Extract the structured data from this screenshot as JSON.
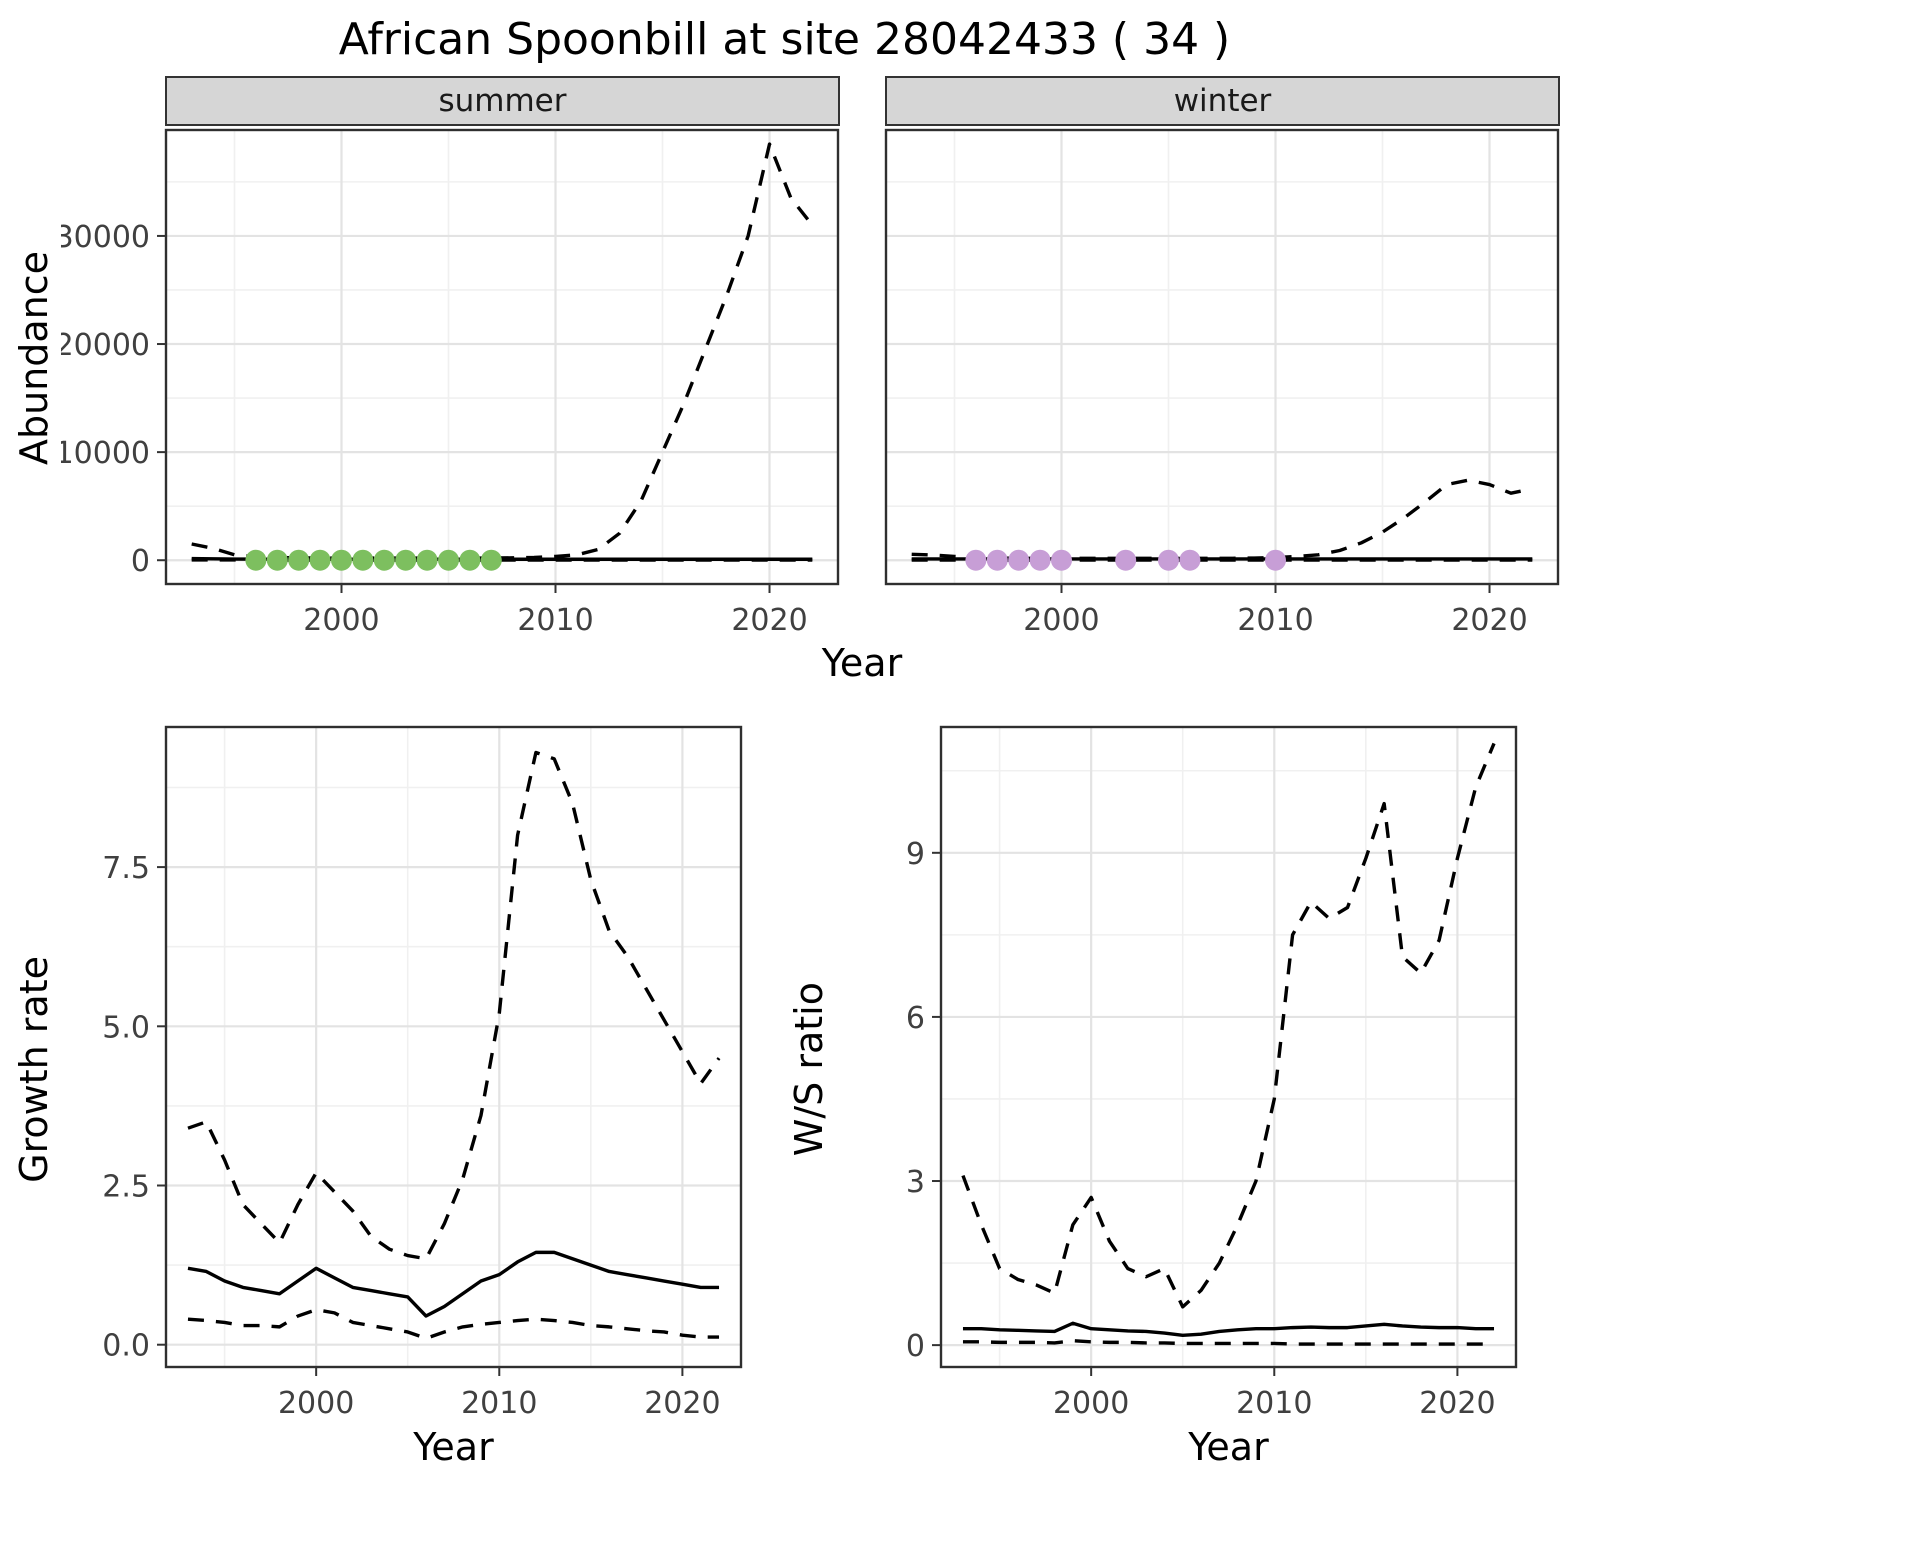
{
  "title": "African Spoonbill at site 28042433 ( 34 )",
  "abundance": {
    "ylabel": "Abundance",
    "xlabel": "Year",
    "facets": [
      {
        "label": "summer"
      },
      {
        "label": "winter"
      }
    ]
  },
  "growth": {
    "ylabel": "Growth rate",
    "xlabel": "Year"
  },
  "ratio": {
    "ylabel": "W/S ratio",
    "xlabel": "Year"
  },
  "colors": {
    "line": "#000000",
    "summer_points": "#7dbf5f",
    "winter_points": "#c79ed6",
    "grid_major": "#e3e3e3",
    "grid_minor": "#f0f0f0",
    "panel_border": "#2f2f2f",
    "strip_bg": "#d6d6d6"
  },
  "chart_data": [
    {
      "type": "line",
      "name": "abundance_summer",
      "facet": "summer",
      "xlabel": "Year",
      "ylabel": "Abundance",
      "xlim": [
        1991.8,
        2023.2
      ],
      "ylim": [
        -2200,
        39800
      ],
      "xticks": {
        "values": [
          2000,
          2010,
          2020
        ],
        "labels": [
          "2000",
          "2010",
          "2020"
        ]
      },
      "yticks": {
        "values": [
          0,
          10000,
          20000,
          30000
        ],
        "labels": [
          "0",
          "10000",
          "20000",
          "30000"
        ]
      },
      "x": [
        1993,
        1994,
        1995,
        1996,
        1997,
        1998,
        1999,
        2000,
        2001,
        2002,
        2003,
        2004,
        2005,
        2006,
        2007,
        2008,
        2009,
        2010,
        2011,
        2012,
        2013,
        2014,
        2015,
        2016,
        2017,
        2018,
        2019,
        2020,
        2021,
        2022
      ],
      "series": [
        {
          "name": "upper_ci",
          "style": "dashed",
          "y": [
            1500,
            1100,
            500,
            300,
            250,
            220,
            200,
            200,
            200,
            200,
            200,
            200,
            200,
            200,
            200,
            220,
            260,
            350,
            500,
            1000,
            2500,
            5500,
            10000,
            14500,
            19500,
            24500,
            30000,
            38500,
            33500,
            31000
          ]
        },
        {
          "name": "median",
          "style": "solid",
          "y": [
            150,
            130,
            110,
            100,
            95,
            90,
            90,
            90,
            90,
            90,
            90,
            90,
            90,
            90,
            90,
            90,
            90,
            90,
            90,
            90,
            90,
            90,
            90,
            90,
            90,
            90,
            90,
            90,
            90,
            90
          ]
        },
        {
          "name": "lower_ci",
          "style": "dashed",
          "y": [
            30,
            25,
            22,
            20,
            18,
            15,
            15,
            15,
            15,
            15,
            15,
            15,
            15,
            15,
            15,
            15,
            15,
            15,
            15,
            15,
            15,
            15,
            15,
            15,
            15,
            15,
            15,
            15,
            15,
            15
          ]
        }
      ],
      "points": {
        "name": "observed_counts",
        "color_key": "summer_points",
        "x": [
          1996,
          1997,
          1998,
          1999,
          2000,
          2001,
          2002,
          2003,
          2004,
          2005,
          2006,
          2007
        ],
        "y": [
          0,
          0,
          0,
          0,
          0,
          0,
          0,
          0,
          0,
          0,
          0,
          0
        ]
      }
    },
    {
      "type": "line",
      "name": "abundance_winter",
      "facet": "winter",
      "xlabel": "Year",
      "ylabel": "Abundance",
      "xlim": [
        1991.8,
        2023.2
      ],
      "ylim": [
        -2200,
        39800
      ],
      "xticks": {
        "values": [
          2000,
          2010,
          2020
        ],
        "labels": [
          "2000",
          "2010",
          "2020"
        ]
      },
      "yticks": {
        "values": [
          0,
          10000,
          20000,
          30000
        ],
        "labels": [
          "0",
          "10000",
          "20000",
          "30000"
        ]
      },
      "x": [
        1993,
        1994,
        1995,
        1996,
        1997,
        1998,
        1999,
        2000,
        2001,
        2002,
        2003,
        2004,
        2005,
        2006,
        2007,
        2008,
        2009,
        2010,
        2011,
        2012,
        2013,
        2014,
        2015,
        2016,
        2017,
        2018,
        2019,
        2020,
        2021,
        2022
      ],
      "series": [
        {
          "name": "upper_ci",
          "style": "dashed",
          "y": [
            550,
            480,
            350,
            250,
            200,
            180,
            170,
            170,
            170,
            170,
            170,
            170,
            170,
            170,
            170,
            180,
            200,
            250,
            350,
            500,
            900,
            1600,
            2600,
            3900,
            5400,
            7000,
            7400,
            7000,
            6200,
            6600
          ]
        },
        {
          "name": "median",
          "style": "solid",
          "y": [
            120,
            120,
            120,
            120,
            120,
            120,
            120,
            120,
            120,
            120,
            120,
            120,
            120,
            120,
            120,
            120,
            120,
            120,
            120,
            120,
            120,
            120,
            120,
            120,
            120,
            120,
            120,
            120,
            120,
            120
          ]
        },
        {
          "name": "lower_ci",
          "style": "dashed",
          "y": [
            20,
            20,
            20,
            20,
            20,
            20,
            20,
            20,
            20,
            20,
            20,
            20,
            20,
            20,
            20,
            20,
            20,
            20,
            20,
            20,
            20,
            20,
            20,
            20,
            20,
            20,
            20,
            20,
            20,
            20
          ]
        }
      ],
      "points": {
        "name": "observed_counts",
        "color_key": "winter_points",
        "x": [
          1996,
          1997,
          1998,
          1999,
          2000,
          2003,
          2005,
          2006,
          2010
        ],
        "y": [
          0,
          0,
          0,
          0,
          0,
          0,
          0,
          0,
          0
        ]
      }
    },
    {
      "type": "line",
      "name": "growth_rate",
      "xlabel": "Year",
      "ylabel": "Growth rate",
      "xlim": [
        1991.8,
        2023.2
      ],
      "ylim": [
        -0.35,
        9.7
      ],
      "xticks": {
        "values": [
          2000,
          2010,
          2020
        ],
        "labels": [
          "2000",
          "2010",
          "2020"
        ]
      },
      "yticks": {
        "values": [
          0,
          2.5,
          5,
          7.5
        ],
        "labels": [
          "0.0",
          "2.5",
          "5.0",
          "7.5"
        ]
      },
      "x": [
        1993,
        1994,
        1995,
        1996,
        1997,
        1998,
        1999,
        2000,
        2001,
        2002,
        2003,
        2004,
        2005,
        2006,
        2007,
        2008,
        2009,
        2010,
        2011,
        2012,
        2013,
        2014,
        2015,
        2016,
        2017,
        2018,
        2019,
        2020,
        2021,
        2022
      ],
      "series": [
        {
          "name": "upper_ci",
          "style": "dashed",
          "y": [
            3.4,
            3.5,
            2.9,
            2.2,
            1.9,
            1.6,
            2.2,
            2.7,
            2.4,
            2.1,
            1.7,
            1.5,
            1.4,
            1.35,
            1.9,
            2.6,
            3.6,
            5.2,
            8.0,
            9.3,
            9.2,
            8.5,
            7.3,
            6.5,
            6.1,
            5.6,
            5.1,
            4.6,
            4.1,
            4.5
          ]
        },
        {
          "name": "median",
          "style": "solid",
          "y": [
            1.2,
            1.15,
            1.0,
            0.9,
            0.85,
            0.8,
            1.0,
            1.2,
            1.05,
            0.9,
            0.85,
            0.8,
            0.75,
            0.45,
            0.6,
            0.8,
            1.0,
            1.1,
            1.3,
            1.45,
            1.45,
            1.35,
            1.25,
            1.15,
            1.1,
            1.05,
            1.0,
            0.95,
            0.9,
            0.9
          ]
        },
        {
          "name": "lower_ci",
          "style": "dashed",
          "y": [
            0.4,
            0.38,
            0.35,
            0.3,
            0.3,
            0.28,
            0.45,
            0.55,
            0.5,
            0.35,
            0.3,
            0.25,
            0.2,
            0.1,
            0.2,
            0.28,
            0.32,
            0.35,
            0.38,
            0.4,
            0.38,
            0.35,
            0.3,
            0.28,
            0.25,
            0.22,
            0.2,
            0.15,
            0.12,
            0.12
          ]
        }
      ]
    },
    {
      "type": "line",
      "name": "winter_summer_ratio",
      "xlabel": "Year",
      "ylabel": "W/S ratio",
      "xlim": [
        1991.8,
        2023.2
      ],
      "ylim": [
        -0.4,
        11.3
      ],
      "xticks": {
        "values": [
          2000,
          2010,
          2020
        ],
        "labels": [
          "2000",
          "2010",
          "2020"
        ]
      },
      "yticks": {
        "values": [
          0,
          3,
          6,
          9
        ],
        "labels": [
          "0",
          "3",
          "6",
          "9"
        ]
      },
      "x": [
        1993,
        1994,
        1995,
        1996,
        1997,
        1998,
        1999,
        2000,
        2001,
        2002,
        2003,
        2004,
        2005,
        2006,
        2007,
        2008,
        2009,
        2010,
        2011,
        2012,
        2013,
        2014,
        2015,
        2016,
        2017,
        2018,
        2019,
        2020,
        2021,
        2022
      ],
      "series": [
        {
          "name": "upper_ci",
          "style": "dashed",
          "y": [
            3.1,
            2.2,
            1.4,
            1.2,
            1.1,
            0.95,
            2.2,
            2.7,
            1.9,
            1.4,
            1.25,
            1.4,
            0.7,
            1.0,
            1.5,
            2.2,
            3.0,
            4.5,
            7.5,
            8.1,
            7.8,
            8.0,
            8.9,
            9.9,
            7.1,
            6.8,
            7.4,
            8.9,
            10.2,
            11.0
          ]
        },
        {
          "name": "median",
          "style": "solid",
          "y": [
            0.3,
            0.3,
            0.28,
            0.27,
            0.26,
            0.25,
            0.4,
            0.3,
            0.28,
            0.26,
            0.25,
            0.22,
            0.18,
            0.2,
            0.25,
            0.28,
            0.3,
            0.3,
            0.32,
            0.33,
            0.32,
            0.32,
            0.35,
            0.38,
            0.35,
            0.33,
            0.32,
            0.32,
            0.3,
            0.3
          ]
        },
        {
          "name": "lower_ci",
          "style": "dashed",
          "y": [
            0.06,
            0.06,
            0.05,
            0.05,
            0.05,
            0.04,
            0.08,
            0.06,
            0.05,
            0.05,
            0.04,
            0.04,
            0.03,
            0.03,
            0.03,
            0.03,
            0.03,
            0.03,
            0.02,
            0.02,
            0.02,
            0.02,
            0.02,
            0.02,
            0.02,
            0.02,
            0.02,
            0.02,
            0.02,
            0.02
          ]
        }
      ]
    }
  ]
}
